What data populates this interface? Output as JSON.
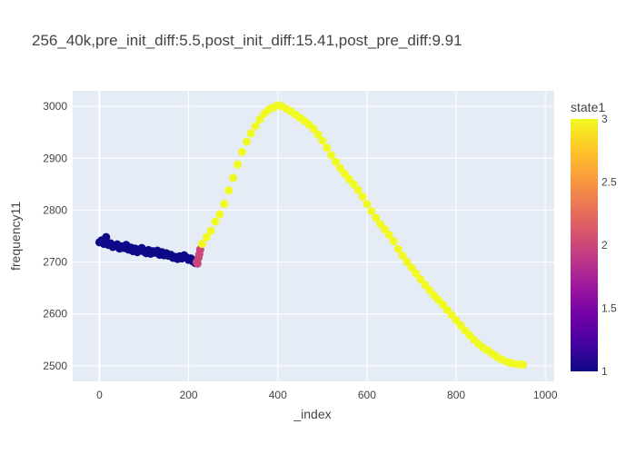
{
  "chart_data": {
    "type": "scatter",
    "title": "256_40k,pre_init_diff:5.5,post_init_diff:15.41,post_pre_diff:9.91",
    "xlabel": "_index",
    "ylabel": "frequency11",
    "xlim": [
      -60,
      1020
    ],
    "ylim": [
      2470,
      3030
    ],
    "x_ticks": [
      0,
      200,
      400,
      600,
      800,
      1000
    ],
    "y_ticks": [
      2500,
      2600,
      2700,
      2800,
      2900,
      3000
    ],
    "grid": true,
    "plot_background": "#e5ecf6",
    "colorbar": {
      "title": "state1",
      "range": [
        1,
        3
      ],
      "ticks": [
        1,
        1.5,
        2,
        2.5,
        3
      ],
      "tick_labels": [
        "1",
        "1.5",
        "2",
        "2.5",
        "3"
      ],
      "colorscale": [
        "#0d0887",
        "#46039f",
        "#7201a8",
        "#9c179e",
        "#bd3786",
        "#d8576b",
        "#ed7953",
        "#fb9f3a",
        "#fdca26",
        "#f0f921"
      ],
      "placement": "right"
    },
    "series": [
      {
        "state": 1,
        "points": [
          [
            0,
            2738
          ],
          [
            5,
            2742
          ],
          [
            10,
            2735
          ],
          [
            15,
            2748
          ],
          [
            20,
            2733
          ],
          [
            25,
            2736
          ],
          [
            30,
            2729
          ],
          [
            35,
            2731
          ],
          [
            40,
            2734
          ],
          [
            45,
            2726
          ],
          [
            50,
            2730
          ],
          [
            55,
            2727
          ],
          [
            60,
            2733
          ],
          [
            65,
            2724
          ],
          [
            70,
            2728
          ],
          [
            75,
            2721
          ],
          [
            80,
            2726
          ],
          [
            85,
            2719
          ],
          [
            90,
            2724
          ],
          [
            95,
            2727
          ],
          [
            100,
            2720
          ],
          [
            105,
            2717
          ],
          [
            110,
            2723
          ],
          [
            115,
            2716
          ],
          [
            120,
            2721
          ],
          [
            125,
            2718
          ],
          [
            130,
            2722
          ],
          [
            135,
            2714
          ],
          [
            140,
            2719
          ],
          [
            145,
            2713
          ],
          [
            150,
            2717
          ],
          [
            155,
            2712
          ],
          [
            160,
            2714
          ],
          [
            165,
            2708
          ],
          [
            170,
            2710
          ],
          [
            175,
            2706
          ],
          [
            180,
            2711
          ],
          [
            185,
            2707
          ],
          [
            190,
            2713
          ],
          [
            195,
            2709
          ],
          [
            200,
            2704
          ],
          [
            205,
            2707
          ],
          [
            210,
            2701
          ],
          [
            215,
            2698
          ]
        ]
      },
      {
        "state": 2,
        "points": [
          [
            218,
            2700
          ],
          [
            220,
            2697
          ],
          [
            222,
            2708
          ],
          [
            224,
            2715
          ],
          [
            226,
            2724
          ]
        ]
      },
      {
        "state": 3,
        "points": [
          [
            230,
            2735
          ],
          [
            240,
            2748
          ],
          [
            250,
            2760
          ],
          [
            260,
            2778
          ],
          [
            270,
            2792
          ],
          [
            280,
            2812
          ],
          [
            290,
            2838
          ],
          [
            300,
            2862
          ],
          [
            310,
            2888
          ],
          [
            320,
            2912
          ],
          [
            330,
            2932
          ],
          [
            340,
            2948
          ],
          [
            350,
            2962
          ],
          [
            360,
            2975
          ],
          [
            370,
            2986
          ],
          [
            380,
            2994
          ],
          [
            390,
            2998
          ],
          [
            400,
            3002
          ],
          [
            410,
            3000
          ],
          [
            420,
            2995
          ],
          [
            430,
            2990
          ],
          [
            440,
            2984
          ],
          [
            450,
            2978
          ],
          [
            460,
            2972
          ],
          [
            470,
            2965
          ],
          [
            480,
            2957
          ],
          [
            490,
            2946
          ],
          [
            500,
            2934
          ],
          [
            510,
            2920
          ],
          [
            520,
            2906
          ],
          [
            530,
            2893
          ],
          [
            540,
            2881
          ],
          [
            550,
            2870
          ],
          [
            560,
            2860
          ],
          [
            570,
            2850
          ],
          [
            580,
            2839
          ],
          [
            590,
            2826
          ],
          [
            600,
            2812
          ],
          [
            610,
            2798
          ],
          [
            620,
            2785
          ],
          [
            630,
            2773
          ],
          [
            640,
            2763
          ],
          [
            650,
            2752
          ],
          [
            660,
            2740
          ],
          [
            670,
            2725
          ],
          [
            680,
            2712
          ],
          [
            690,
            2700
          ],
          [
            700,
            2689
          ],
          [
            710,
            2678
          ],
          [
            720,
            2667
          ],
          [
            730,
            2656
          ],
          [
            740,
            2646
          ],
          [
            750,
            2636
          ],
          [
            760,
            2627
          ],
          [
            770,
            2618
          ],
          [
            780,
            2608
          ],
          [
            790,
            2598
          ],
          [
            800,
            2588
          ],
          [
            810,
            2578
          ],
          [
            820,
            2568
          ],
          [
            830,
            2559
          ],
          [
            840,
            2550
          ],
          [
            850,
            2542
          ],
          [
            860,
            2535
          ],
          [
            870,
            2530
          ],
          [
            880,
            2524
          ],
          [
            890,
            2518
          ],
          [
            900,
            2513
          ],
          [
            910,
            2509
          ],
          [
            920,
            2506
          ],
          [
            930,
            2504
          ],
          [
            940,
            2503
          ],
          [
            950,
            2502
          ]
        ]
      }
    ]
  }
}
